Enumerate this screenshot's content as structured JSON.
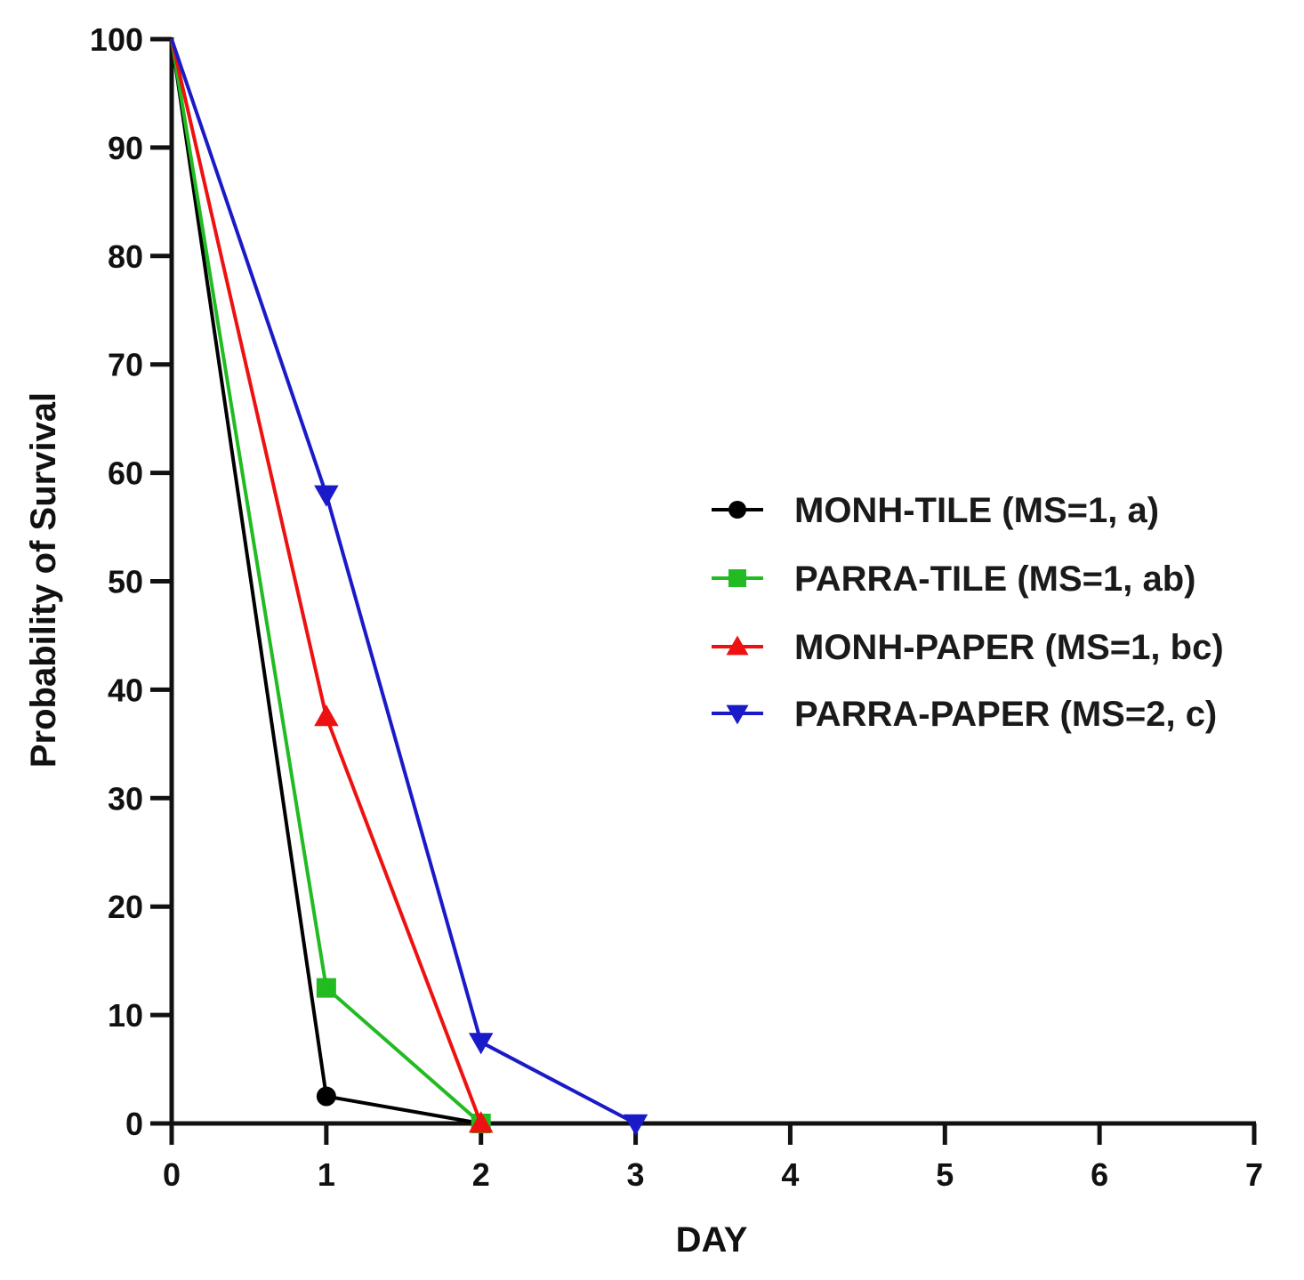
{
  "chart_data": {
    "type": "line",
    "title": "",
    "xlabel": "DAY",
    "ylabel": "Probability of Survival",
    "xlim": [
      0,
      7
    ],
    "ylim": [
      0,
      100
    ],
    "x_ticks": [
      "0",
      "1",
      "2",
      "3",
      "4",
      "5",
      "6",
      "7"
    ],
    "y_ticks": [
      "0",
      "10",
      "20",
      "30",
      "40",
      "50",
      "60",
      "70",
      "80",
      "90",
      "100"
    ],
    "grid": false,
    "legend_position": "right",
    "series": [
      {
        "name": "MONH-TILE (MS=1, a)",
        "color": "#000000",
        "marker": "circle",
        "x": [
          0,
          1,
          2
        ],
        "y": [
          100,
          2.5,
          0
        ]
      },
      {
        "name": "PARRA-TILE (MS=1, ab)",
        "color": "#22bb22",
        "marker": "square",
        "x": [
          0,
          1,
          2
        ],
        "y": [
          100,
          12.5,
          0
        ]
      },
      {
        "name": "MONH-PAPER (MS=1, bc)",
        "color": "#ee1111",
        "marker": "triangle-up",
        "x": [
          0,
          1,
          2
        ],
        "y": [
          100,
          37.5,
          0
        ]
      },
      {
        "name": "PARRA-PAPER (MS=2, c)",
        "color": "#1a1ac8",
        "marker": "triangle-down",
        "x": [
          0,
          1,
          2,
          3
        ],
        "y": [
          100,
          58,
          7.5,
          0
        ]
      }
    ]
  }
}
